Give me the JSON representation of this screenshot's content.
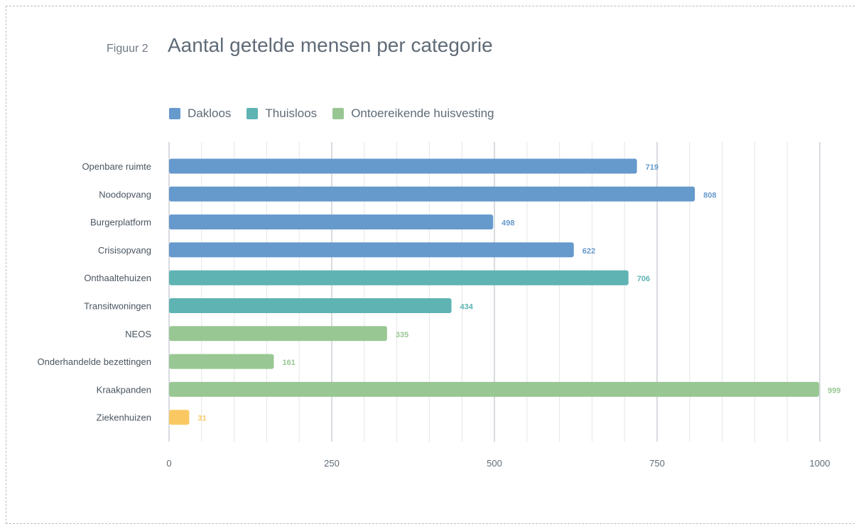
{
  "figure_label": "Figuur 2",
  "title": "Aantal getelde mensen per categorie",
  "colors": {
    "dakloos": "#6699cc",
    "thuisloos": "#5fb3b3",
    "ontoereikend": "#99c794",
    "other": "#fac863",
    "grid": "#e3e5e8",
    "axis_text": "#5f6b77"
  },
  "legend": [
    {
      "label": "Dakloos",
      "color_key": "dakloos"
    },
    {
      "label": "Thuisloos",
      "color_key": "thuisloos"
    },
    {
      "label": "Ontoereikende huisvesting",
      "color_key": "ontoereikend"
    }
  ],
  "chart_data": {
    "type": "bar",
    "orientation": "horizontal",
    "categories": [
      "Openbare ruimte",
      "Noodopvang",
      "Burgerplatform",
      "Crisisopvang",
      "Onthaaltehuizen",
      "Transitwoningen",
      "NEOS",
      "Onderhandelde bezettingen",
      "Kraakpanden",
      "Ziekenhuizen"
    ],
    "values": [
      719,
      808,
      498,
      622,
      706,
      434,
      335,
      161,
      999,
      31
    ],
    "value_labels": [
      "719",
      "808",
      "498",
      "622",
      "706",
      "434",
      "335",
      "161",
      "999",
      "31"
    ],
    "groups": [
      "dakloos",
      "dakloos",
      "dakloos",
      "dakloos",
      "thuisloos",
      "thuisloos",
      "ontoereikend",
      "ontoereikend",
      "ontoereikend",
      "other"
    ],
    "xlim": [
      0,
      1000
    ],
    "x_ticks": [
      0,
      250,
      500,
      750,
      1000
    ],
    "x_tick_labels": [
      "0",
      "250",
      "500",
      "750",
      "1000"
    ],
    "grid": true,
    "legend_position": "top-left"
  }
}
